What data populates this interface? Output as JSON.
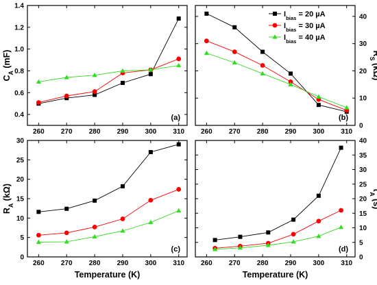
{
  "legend": {
    "entries": [
      {
        "main": "I",
        "sub": "bias",
        "rest": " = 20 µA",
        "color": "#000000",
        "marker": "square"
      },
      {
        "main": "I",
        "sub": "bias",
        "rest": " = 30 µA",
        "color": "#ff0000",
        "marker": "circle"
      },
      {
        "main": "I",
        "sub": "bias",
        "rest": " = 40 µA",
        "color": "#33dd22",
        "marker": "triangle"
      }
    ]
  },
  "chart_data": [
    {
      "type": "line",
      "panel_label": "(a)",
      "ylabel": {
        "main": "C",
        "sub": "A",
        "rest": " (mF)"
      },
      "ylabel_side": "left",
      "xlim": [
        256,
        313
      ],
      "ylim": [
        0.3,
        1.4
      ],
      "xticks": [
        260,
        270,
        280,
        290,
        300,
        310
      ],
      "yticks": [
        0.4,
        0.6,
        0.8,
        1.0,
        1.2,
        1.4
      ],
      "ytick_labels": [
        "0.4",
        "0.6",
        "0.8",
        "1.0",
        "1.2",
        "1.4"
      ],
      "series": [
        {
          "color": "#000000",
          "marker": "square",
          "x": [
            260,
            270,
            280,
            290,
            300,
            310
          ],
          "y": [
            0.5,
            0.55,
            0.58,
            0.69,
            0.77,
            1.28
          ]
        },
        {
          "color": "#ff0000",
          "marker": "circle",
          "x": [
            260,
            270,
            280,
            290,
            300,
            310
          ],
          "y": [
            0.51,
            0.57,
            0.61,
            0.78,
            0.81,
            0.91
          ]
        },
        {
          "color": "#33dd22",
          "marker": "triangle",
          "x": [
            260,
            270,
            280,
            290,
            300,
            310
          ],
          "y": [
            0.7,
            0.74,
            0.76,
            0.8,
            0.81,
            0.85
          ]
        }
      ]
    },
    {
      "type": "line",
      "panel_label": "(b)",
      "ylabel": {
        "main": "R",
        "sub": "S",
        "rest": " (kΩ)"
      },
      "ylabel_side": "right",
      "xlim": [
        256,
        313
      ],
      "ylim": [
        0,
        44
      ],
      "xticks": [
        260,
        270,
        280,
        290,
        300,
        310
      ],
      "yticks": [
        0,
        10,
        20,
        30,
        40
      ],
      "ytick_labels": [
        "0",
        "10",
        "20",
        "30",
        "40"
      ],
      "series": [
        {
          "color": "#000000",
          "marker": "square",
          "x": [
            260,
            270,
            280,
            290,
            300,
            310
          ],
          "y": [
            41,
            36,
            27,
            19,
            7.5,
            5
          ]
        },
        {
          "color": "#ff0000",
          "marker": "circle",
          "x": [
            260,
            270,
            280,
            290,
            300,
            310
          ],
          "y": [
            31,
            27,
            22,
            16,
            9.5,
            5.5
          ]
        },
        {
          "color": "#33dd22",
          "marker": "triangle",
          "x": [
            260,
            270,
            280,
            290,
            300,
            310
          ],
          "y": [
            26.5,
            23,
            19,
            15,
            10.5,
            6.5
          ]
        }
      ]
    },
    {
      "type": "line",
      "panel_label": "(c)",
      "ylabel": {
        "main": "R",
        "sub": "A",
        "rest": " (kΩ)"
      },
      "ylabel_side": "left",
      "xlabel": "Temperature (K)",
      "xlim": [
        256,
        313
      ],
      "ylim": [
        0,
        30
      ],
      "xticks": [
        260,
        270,
        280,
        290,
        300,
        310
      ],
      "yticks": [
        0,
        5,
        10,
        15,
        20,
        25,
        30
      ],
      "ytick_labels": [
        "0",
        "5",
        "10",
        "15",
        "20",
        "25",
        "30"
      ],
      "series": [
        {
          "color": "#000000",
          "marker": "square",
          "x": [
            260,
            270,
            280,
            290,
            300,
            310
          ],
          "y": [
            11.6,
            12.4,
            14.5,
            18.2,
            27.0,
            29.0
          ]
        },
        {
          "color": "#ff0000",
          "marker": "circle",
          "x": [
            260,
            270,
            280,
            290,
            300,
            310
          ],
          "y": [
            5.6,
            6.2,
            7.7,
            9.8,
            14.6,
            17.4
          ]
        },
        {
          "color": "#33dd22",
          "marker": "triangle",
          "x": [
            260,
            270,
            280,
            290,
            300,
            310
          ],
          "y": [
            3.8,
            3.9,
            5.2,
            6.7,
            8.9,
            11.9
          ]
        }
      ]
    },
    {
      "type": "line",
      "panel_label": "(d)",
      "ylabel": {
        "main": "τ",
        "sub": "A",
        "rest": " (s)"
      },
      "ylabel_side": "right",
      "xlabel": "Temperature (K)",
      "xlim": [
        256,
        313
      ],
      "ylim": [
        0,
        40
      ],
      "xticks": [
        260,
        270,
        280,
        290,
        300,
        310
      ],
      "yticks": [
        0,
        5,
        10,
        15,
        20,
        25,
        30,
        35,
        40
      ],
      "ytick_labels": [
        "0",
        "5",
        "10",
        "15",
        "20",
        "25",
        "30",
        "35",
        "40"
      ],
      "series": [
        {
          "color": "#000000",
          "marker": "square",
          "x": [
            263,
            272,
            282,
            291,
            300,
            308
          ],
          "y": [
            5.8,
            6.9,
            8.4,
            12.8,
            21.0,
            37.5
          ]
        },
        {
          "color": "#ff0000",
          "marker": "circle",
          "x": [
            263,
            272,
            282,
            291,
            300,
            308
          ],
          "y": [
            3.0,
            3.7,
            4.7,
            7.8,
            12.3,
            16.0
          ]
        },
        {
          "color": "#33dd22",
          "marker": "triangle",
          "x": [
            263,
            272,
            282,
            291,
            300,
            308
          ],
          "y": [
            2.6,
            3.1,
            4.0,
            5.2,
            7.1,
            10.2
          ]
        }
      ]
    }
  ]
}
